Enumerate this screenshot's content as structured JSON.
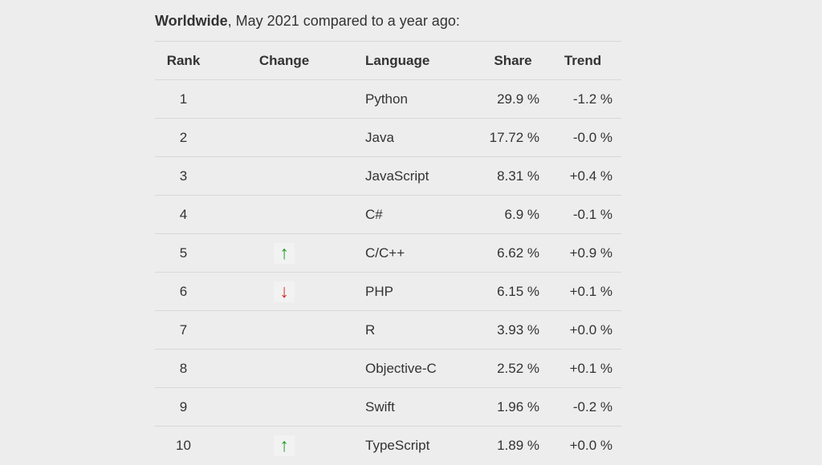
{
  "page": {
    "title": {
      "bold": "Worldwide",
      "rest": ", May 2021 compared to a year ago:"
    }
  },
  "colors": {
    "background": "#ededed",
    "text": "#333333",
    "divider": "#d8d8d8",
    "up_arrow_green": "#1a9c20",
    "down_arrow_red": "#d52b28"
  },
  "table": {
    "columns": [
      {
        "key": "rank",
        "label": "Rank"
      },
      {
        "key": "change",
        "label": "Change"
      },
      {
        "key": "language",
        "label": "Language"
      },
      {
        "key": "share",
        "label": "Share"
      },
      {
        "key": "trend",
        "label": "Trend"
      }
    ],
    "rows": [
      {
        "rank": "1",
        "change_icon": null,
        "change_glyph": "",
        "change_dir": "",
        "language": "Python",
        "share": "29.9 %",
        "trend": "-1.2 %"
      },
      {
        "rank": "2",
        "change_icon": null,
        "change_glyph": "",
        "change_dir": "",
        "language": "Java",
        "share": "17.72 %",
        "trend": "-0.0 %"
      },
      {
        "rank": "3",
        "change_icon": null,
        "change_glyph": "",
        "change_dir": "",
        "language": "JavaScript",
        "share": "8.31 %",
        "trend": "+0.4 %"
      },
      {
        "rank": "4",
        "change_icon": null,
        "change_glyph": "",
        "change_dir": "",
        "language": "C#",
        "share": "6.9 %",
        "trend": "-0.1 %"
      },
      {
        "rank": "5",
        "change_icon": "up-arrow-icon",
        "change_glyph": "↑",
        "change_dir": "up",
        "language": "C/C++",
        "share": "6.62 %",
        "trend": "+0.9 %"
      },
      {
        "rank": "6",
        "change_icon": "down-arrow-icon",
        "change_glyph": "↓",
        "change_dir": "down",
        "language": "PHP",
        "share": "6.15 %",
        "trend": "+0.1 %"
      },
      {
        "rank": "7",
        "change_icon": null,
        "change_glyph": "",
        "change_dir": "",
        "language": "R",
        "share": "3.93 %",
        "trend": "+0.0 %"
      },
      {
        "rank": "8",
        "change_icon": null,
        "change_glyph": "",
        "change_dir": "",
        "language": "Objective-C",
        "share": "2.52 %",
        "trend": "+0.1 %"
      },
      {
        "rank": "9",
        "change_icon": null,
        "change_glyph": "",
        "change_dir": "",
        "language": "Swift",
        "share": "1.96 %",
        "trend": "-0.2 %"
      },
      {
        "rank": "10",
        "change_icon": "up-arrow-icon",
        "change_glyph": "↑",
        "change_dir": "up",
        "language": "TypeScript",
        "share": "1.89 %",
        "trend": "+0.0 %"
      }
    ]
  }
}
